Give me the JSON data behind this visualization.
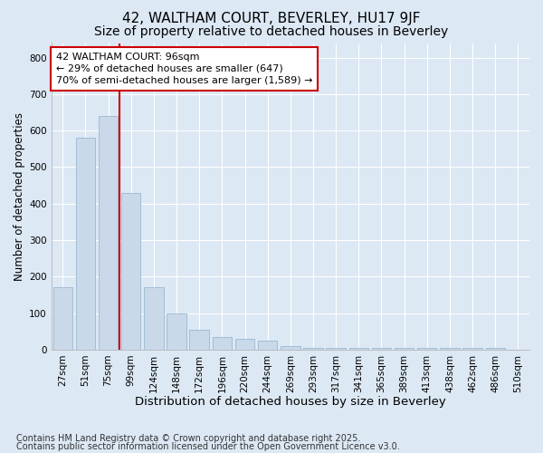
{
  "title1": "42, WALTHAM COURT, BEVERLEY, HU17 9JF",
  "title2": "Size of property relative to detached houses in Beverley",
  "xlabel": "Distribution of detached houses by size in Beverley",
  "ylabel": "Number of detached properties",
  "categories": [
    "27sqm",
    "51sqm",
    "75sqm",
    "99sqm",
    "124sqm",
    "148sqm",
    "172sqm",
    "196sqm",
    "220sqm",
    "244sqm",
    "269sqm",
    "293sqm",
    "317sqm",
    "341sqm",
    "365sqm",
    "389sqm",
    "413sqm",
    "438sqm",
    "462sqm",
    "486sqm",
    "510sqm"
  ],
  "bar_values": [
    170,
    580,
    640,
    430,
    170,
    100,
    55,
    35,
    30,
    25,
    10,
    5,
    5,
    5,
    5,
    5,
    5,
    5,
    5,
    5,
    0
  ],
  "bar_color": "#c9d9ea",
  "bar_edge_color": "#9ab8d0",
  "vline_x": 2.5,
  "vline_color": "#cc0000",
  "ylim": [
    0,
    840
  ],
  "yticks": [
    0,
    100,
    200,
    300,
    400,
    500,
    600,
    700,
    800
  ],
  "annotation_line1": "42 WALTHAM COURT: 96sqm",
  "annotation_line2": "← 29% of detached houses are smaller (647)",
  "annotation_line3": "70% of semi-detached houses are larger (1,589) →",
  "annotation_box_color": "#cc0000",
  "annotation_bg_color": "#ffffff",
  "footnote1": "Contains HM Land Registry data © Crown copyright and database right 2025.",
  "footnote2": "Contains public sector information licensed under the Open Government Licence v3.0.",
  "background_color": "#dce8f4",
  "plot_bg_color": "#dce8f4",
  "grid_color": "#ffffff",
  "title1_fontsize": 11,
  "title2_fontsize": 10,
  "annotation_fontsize": 8,
  "tick_fontsize": 7.5,
  "xlabel_fontsize": 9.5,
  "ylabel_fontsize": 8.5,
  "footnote_fontsize": 7
}
